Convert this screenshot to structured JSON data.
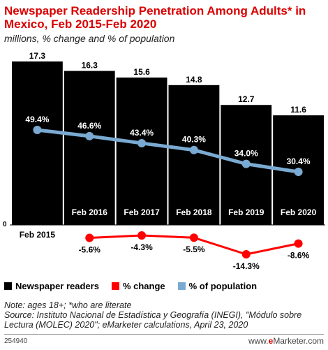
{
  "title": "Newspaper Readership Penetration Among Adults* in Mexico, Feb 2015-Feb 2020",
  "subtitle": "millions, % change and % of population",
  "chart_data": {
    "type": "bar",
    "categories": [
      "Feb 2015",
      "Feb 2016",
      "Feb 2017",
      "Feb 2018",
      "Feb 2019",
      "Feb 2020"
    ],
    "zero_label": "0",
    "series": [
      {
        "name": "Newspaper readers",
        "type": "bar",
        "color": "#000000",
        "values": [
          17.3,
          16.3,
          15.6,
          14.8,
          12.7,
          11.6
        ],
        "labels": [
          "17.3",
          "16.3",
          "15.6",
          "14.8",
          "12.7",
          "11.6"
        ]
      },
      {
        "name": "% change",
        "type": "line",
        "color": "#ff0000",
        "values": [
          null,
          -5.6,
          -4.3,
          -5.5,
          -14.3,
          -8.6
        ],
        "labels": [
          "",
          "-5.6%",
          "-4.3%",
          "-5.5%",
          "-14.3%",
          "-8.6%"
        ]
      },
      {
        "name": "% of population",
        "type": "line",
        "color": "#7aaad2",
        "values": [
          49.4,
          46.6,
          43.4,
          40.3,
          34.0,
          30.4
        ],
        "labels": [
          "49.4%",
          "46.6%",
          "43.4%",
          "40.3%",
          "34.0%",
          "30.4%"
        ]
      }
    ],
    "ylim": [
      0,
      17.3
    ]
  },
  "legend": {
    "items": [
      {
        "label": "Newspaper readers",
        "color": "#000000"
      },
      {
        "label": "% change",
        "color": "#ff0000"
      },
      {
        "label": "% of population",
        "color": "#7aaad2"
      }
    ]
  },
  "notes": {
    "line1": "Note: ages 18+; *who are literate",
    "line2": "Source: Instituto Nacional de Estadística y Geografía (INEGI), \"Módulo sobre Lectura (MOLEC) 2020\"; eMarketer calculations, April 23, 2020"
  },
  "footer": {
    "chart_id": "254940",
    "brand_prefix": "www.",
    "brand_e": "e",
    "brand_suffix": "Marketer.com"
  }
}
